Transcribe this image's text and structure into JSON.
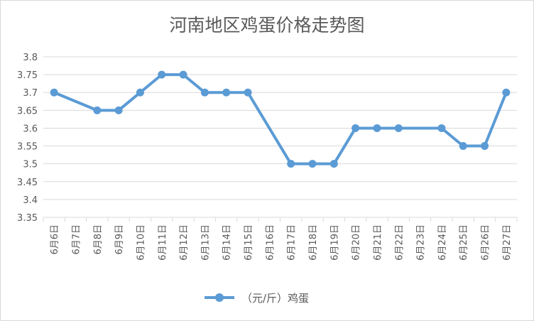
{
  "chart_data": {
    "type": "line",
    "title": "河南地区鸡蛋价格走势图",
    "xlabel": "",
    "ylabel": "",
    "categories": [
      "6月6日",
      "6月7日",
      "6月8日",
      "6月9日",
      "6月10日",
      "6月11日",
      "6月12日",
      "6月13日",
      "6月14日",
      "6月15日",
      "6月16日",
      "6月17日",
      "6月18日",
      "6月19日",
      "6月20日",
      "6月21日",
      "6月22日",
      "6月23日",
      "6月24日",
      "6月25日",
      "6月26日",
      "6月27日"
    ],
    "series": [
      {
        "name": "（元/斤）鸡蛋",
        "color": "#5b9bd5",
        "values": [
          3.7,
          null,
          3.65,
          3.65,
          3.7,
          3.75,
          3.75,
          3.7,
          3.7,
          3.7,
          null,
          3.5,
          3.5,
          3.5,
          3.6,
          3.6,
          3.6,
          null,
          3.6,
          3.55,
          3.55,
          3.7
        ]
      }
    ],
    "ylim": [
      3.35,
      3.8
    ],
    "yticks": [
      "3.35",
      "3.4",
      "3.45",
      "3.5",
      "3.55",
      "3.6",
      "3.65",
      "3.7",
      "3.75",
      "3.8"
    ],
    "grid": true,
    "legend": "bottom"
  }
}
